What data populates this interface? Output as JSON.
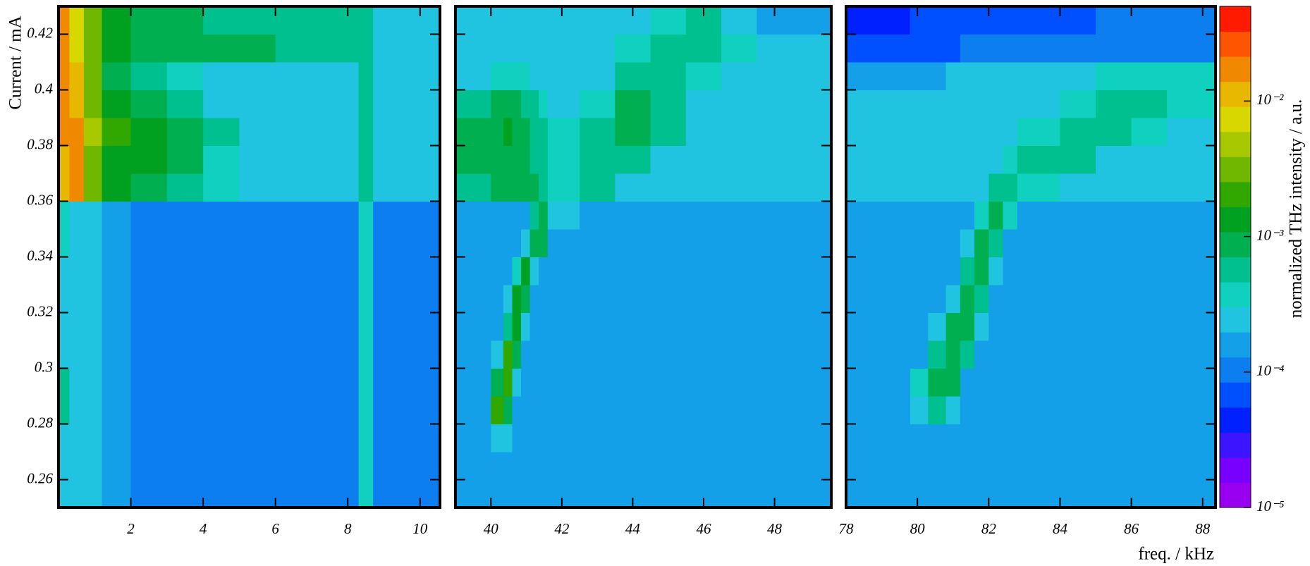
{
  "chart_data": {
    "type": "heatmap",
    "ylabel": "Current / mA",
    "xlabel": "freq. / kHz",
    "ylim": [
      0.25,
      0.43
    ],
    "yticks": [
      0.26,
      0.28,
      0.3,
      0.32,
      0.34,
      0.36,
      0.38,
      0.4,
      0.42
    ],
    "ybins": [
      0.25,
      0.27,
      0.28,
      0.29,
      0.3,
      0.31,
      0.32,
      0.33,
      0.34,
      0.35,
      0.36,
      0.37,
      0.38,
      0.39,
      0.4,
      0.41,
      0.42,
      0.43
    ],
    "zscale": "log",
    "zlim": [
      1e-05,
      0.05
    ],
    "zticks": [
      {
        "value": 1e-05,
        "label": "10⁻⁵"
      },
      {
        "value": 0.0001,
        "label": "10⁻⁴"
      },
      {
        "value": 0.001,
        "label": "10⁻³"
      },
      {
        "value": 0.01,
        "label": "10⁻²"
      }
    ],
    "zlabel": "normalized THz intensity / a.u.",
    "colors": [
      "#9a00f0",
      "#7800ff",
      "#3c14ff",
      "#0020ff",
      "#0050ff",
      "#0c7ef0",
      "#14a0e8",
      "#20c4e0",
      "#10d0c0",
      "#00c090",
      "#00b050",
      "#00a020",
      "#30a800",
      "#70b800",
      "#a8c800",
      "#d8d800",
      "#e8b800",
      "#f08800",
      "#ff5500",
      "#ff1a00"
    ],
    "panels": [
      {
        "xlim": [
          0,
          10.55
        ],
        "xticks": [
          2,
          4,
          6,
          8,
          10
        ],
        "xbins": [
          0,
          0.3,
          0.7,
          1.2,
          2,
          3,
          4,
          5,
          6,
          7,
          8.3,
          8.7,
          10.55
        ],
        "z": [
          [
            0.0002,
            0.00025,
            0.0002,
            0.00015,
            0.00012,
            0.00012,
            0.00012,
            0.00012,
            0.00012,
            0.00012,
            0.0004,
            0.00012
          ],
          [
            0.0003,
            0.0003,
            0.0002,
            0.00015,
            0.00012,
            0.00012,
            0.00012,
            0.00012,
            0.00012,
            0.00012,
            0.0004,
            0.00012
          ],
          [
            0.0006,
            0.0003,
            0.0002,
            0.00015,
            0.00012,
            0.00012,
            0.00012,
            0.00012,
            0.00012,
            0.00012,
            0.0004,
            0.00012
          ],
          [
            0.0005,
            0.0003,
            0.0002,
            0.00015,
            0.00012,
            0.00012,
            0.00012,
            0.00012,
            0.00012,
            0.00012,
            0.0004,
            0.00012
          ],
          [
            0.0003,
            0.0003,
            0.00025,
            0.00015,
            0.00012,
            0.00012,
            0.00012,
            0.00012,
            0.00012,
            0.00012,
            0.0004,
            0.00012
          ],
          [
            0.0003,
            0.0003,
            0.00025,
            0.00015,
            0.00012,
            0.00012,
            0.00012,
            0.00012,
            0.00012,
            0.00012,
            0.0004,
            0.00012
          ],
          [
            0.0003,
            0.0003,
            0.00025,
            0.00015,
            0.00012,
            0.00012,
            0.00012,
            0.00012,
            0.00012,
            0.00012,
            0.0004,
            0.00012
          ],
          [
            0.0003,
            0.0003,
            0.00025,
            0.00015,
            0.00012,
            0.00012,
            0.00012,
            0.00012,
            0.00012,
            0.00012,
            0.0004,
            0.00012
          ],
          [
            0.0004,
            0.0003,
            0.00025,
            0.00015,
            0.00012,
            0.00012,
            0.00012,
            0.00012,
            0.00012,
            0.00012,
            0.0004,
            0.00012
          ],
          [
            0.0004,
            0.0003,
            0.00025,
            0.00015,
            0.00012,
            0.00012,
            0.00012,
            0.00012,
            0.00012,
            0.00012,
            0.0004,
            0.00012
          ],
          [
            0.01,
            0.015,
            0.003,
            0.0012,
            0.001,
            0.0006,
            0.0004,
            0.0003,
            0.0003,
            0.0003,
            0.0006,
            0.00025
          ],
          [
            0.012,
            0.015,
            0.003,
            0.0015,
            0.0012,
            0.0008,
            0.0004,
            0.0003,
            0.0003,
            0.0003,
            0.0006,
            0.00025
          ],
          [
            0.015,
            0.015,
            0.004,
            0.002,
            0.0015,
            0.001,
            0.0005,
            0.0003,
            0.0003,
            0.0003,
            0.0006,
            0.00025
          ],
          [
            0.02,
            0.012,
            0.003,
            0.0012,
            0.0008,
            0.0005,
            0.0003,
            0.00025,
            0.00025,
            0.00025,
            0.0005,
            0.0002
          ],
          [
            0.02,
            0.01,
            0.003,
            0.001,
            0.0006,
            0.0004,
            0.0003,
            0.00025,
            0.00025,
            0.00025,
            0.0005,
            0.0002
          ],
          [
            0.015,
            0.008,
            0.003,
            0.0015,
            0.001,
            0.0008,
            0.0008,
            0.0008,
            0.0006,
            0.0006,
            0.0006,
            0.0003
          ],
          [
            0.015,
            0.008,
            0.003,
            0.0015,
            0.001,
            0.0008,
            0.0006,
            0.0006,
            0.0005,
            0.0005,
            0.0005,
            0.0002
          ]
        ]
      },
      {
        "xlim": [
          39,
          49.6
        ],
        "xticks": [
          40,
          42,
          44,
          46,
          48
        ],
        "xbins": [
          39,
          40,
          40.35,
          40.6,
          40.85,
          41.1,
          41.35,
          41.6,
          42.5,
          43.5,
          44.5,
          45.5,
          46.5,
          47.5,
          49.6
        ],
        "z": [
          [
            0.00013,
            0.00013,
            0.00013,
            0.00013,
            0.00013,
            0.00013,
            0.00013,
            0.00013,
            0.00013,
            0.00013,
            0.00013,
            0.00013,
            0.00013,
            0.00013
          ],
          [
            0.00013,
            0.0003,
            0.0002,
            0.00013,
            0.00013,
            0.00013,
            0.00013,
            0.00013,
            0.00013,
            0.00013,
            0.00013,
            0.00013,
            0.00013,
            0.00013
          ],
          [
            0.00013,
            0.002,
            0.001,
            0.00013,
            0.00013,
            0.00013,
            0.00013,
            0.00013,
            0.00013,
            0.00013,
            0.00013,
            0.00013,
            0.00013,
            0.00013
          ],
          [
            0.00013,
            0.0008,
            0.0025,
            0.0003,
            0.00013,
            0.00013,
            0.00013,
            0.00013,
            0.00013,
            0.00013,
            0.00013,
            0.00013,
            0.00013,
            0.00013
          ],
          [
            0.00013,
            0.0002,
            0.002,
            0.001,
            0.00013,
            0.00013,
            0.00013,
            0.00013,
            0.00013,
            0.00013,
            0.00013,
            0.00013,
            0.00013,
            0.00013
          ],
          [
            0.00013,
            0.00013,
            0.0005,
            0.0015,
            0.0003,
            0.00013,
            0.00013,
            0.00013,
            0.00013,
            0.00013,
            0.00013,
            0.00013,
            0.00013,
            0.00013
          ],
          [
            0.00013,
            0.00013,
            0.0002,
            0.0012,
            0.0008,
            0.00013,
            0.00013,
            0.00013,
            0.00013,
            0.00013,
            0.00013,
            0.00013,
            0.00013,
            0.00013
          ],
          [
            0.00013,
            0.00013,
            0.00013,
            0.0004,
            0.0012,
            0.0003,
            0.00013,
            0.00013,
            0.00013,
            0.00013,
            0.00013,
            0.00013,
            0.00013,
            0.00013
          ],
          [
            0.00013,
            0.00013,
            0.00013,
            0.00013,
            0.0002,
            0.001,
            0.0008,
            0.00013,
            0.00013,
            0.00013,
            0.00013,
            0.00013,
            0.00013,
            0.00013
          ],
          [
            0.00013,
            0.00013,
            0.00013,
            0.00013,
            0.00013,
            0.0005,
            0.001,
            0.0003,
            0.00013,
            0.00013,
            0.00013,
            0.00013,
            0.00013,
            0.00013
          ],
          [
            0.0006,
            0.0008,
            0.0008,
            0.0008,
            0.0008,
            0.0008,
            0.0006,
            0.0004,
            0.0005,
            0.0003,
            0.0003,
            0.00025,
            0.00025,
            0.0002
          ],
          [
            0.0008,
            0.001,
            0.001,
            0.0009,
            0.0008,
            0.0006,
            0.0005,
            0.0004,
            0.0006,
            0.0005,
            0.0003,
            0.00025,
            0.00025,
            0.0002
          ],
          [
            0.0008,
            0.001,
            0.0012,
            0.001,
            0.0008,
            0.0006,
            0.0005,
            0.0004,
            0.0005,
            0.0008,
            0.0005,
            0.0003,
            0.00025,
            0.0002
          ],
          [
            0.0005,
            0.0008,
            0.0009,
            0.0008,
            0.0006,
            0.0005,
            0.0004,
            0.0003,
            0.0004,
            0.0008,
            0.0006,
            0.0003,
            0.00025,
            0.0002
          ],
          [
            0.0003,
            0.0004,
            0.0004,
            0.0004,
            0.0004,
            0.0003,
            0.0003,
            0.0003,
            0.0003,
            0.0006,
            0.0006,
            0.0004,
            0.0003,
            0.0002
          ],
          [
            0.00025,
            0.0003,
            0.0003,
            0.0003,
            0.0003,
            0.0003,
            0.0003,
            0.0003,
            0.0003,
            0.0004,
            0.0006,
            0.0006,
            0.0004,
            0.0002
          ],
          [
            0.0002,
            0.0002,
            0.0002,
            0.0002,
            0.0002,
            0.0002,
            0.0002,
            0.0002,
            0.0002,
            0.0003,
            0.0004,
            0.0005,
            0.0003,
            0.00015
          ]
        ]
      },
      {
        "xlim": [
          78,
          88.36
        ],
        "xticks": [
          78,
          80,
          82,
          84,
          86,
          88
        ],
        "xbins": [
          78,
          79.8,
          80.3,
          80.8,
          81.2,
          81.6,
          82,
          82.4,
          82.8,
          84,
          85,
          86,
          87,
          88.36
        ],
        "z": [
          [
            0.00013,
            0.00013,
            0.00013,
            0.00013,
            0.00013,
            0.00013,
            0.00013,
            0.00013,
            0.00013,
            0.00013,
            0.00013,
            0.00013,
            0.00013
          ],
          [
            0.00013,
            0.00013,
            0.00013,
            0.00013,
            0.00013,
            0.00013,
            0.00013,
            0.00013,
            0.00013,
            0.00013,
            0.00013,
            0.00013,
            0.00013
          ],
          [
            0.00013,
            0.0003,
            0.0006,
            0.0003,
            0.00013,
            0.00013,
            0.00013,
            0.00013,
            0.00013,
            0.00013,
            0.00013,
            0.00013,
            0.00013
          ],
          [
            0.00013,
            0.0004,
            0.0008,
            0.0008,
            0.00013,
            0.00013,
            0.00013,
            0.00013,
            0.00013,
            0.00013,
            0.00013,
            0.00013,
            0.00013
          ],
          [
            0.00013,
            0.00013,
            0.0005,
            0.001,
            0.0006,
            0.00013,
            0.00013,
            0.00013,
            0.00013,
            0.00013,
            0.00013,
            0.00013,
            0.00013
          ],
          [
            0.00013,
            0.00013,
            0.0002,
            0.0008,
            0.001,
            0.0002,
            0.00013,
            0.00013,
            0.00013,
            0.00013,
            0.00013,
            0.00013,
            0.00013
          ],
          [
            0.00013,
            0.00013,
            0.00013,
            0.0003,
            0.001,
            0.0006,
            0.00013,
            0.00013,
            0.00013,
            0.00013,
            0.00013,
            0.00013,
            0.00013
          ],
          [
            0.00013,
            0.00013,
            0.00013,
            0.00013,
            0.0006,
            0.0008,
            0.0003,
            0.00013,
            0.00013,
            0.00013,
            0.00013,
            0.00013,
            0.00013
          ],
          [
            0.00013,
            0.00013,
            0.00013,
            0.00013,
            0.0002,
            0.0008,
            0.0006,
            0.00013,
            0.00013,
            0.00013,
            0.00013,
            0.00013,
            0.00013
          ],
          [
            0.00013,
            0.00013,
            0.00013,
            0.00013,
            0.00013,
            0.0004,
            0.0008,
            0.0004,
            0.00013,
            0.00013,
            0.00013,
            0.00013,
            0.00013
          ],
          [
            0.0003,
            0.0003,
            0.0003,
            0.0003,
            0.0003,
            0.0003,
            0.0005,
            0.0006,
            0.0004,
            0.00025,
            0.00025,
            0.0002,
            0.0002
          ],
          [
            0.0003,
            0.0003,
            0.0003,
            0.0003,
            0.0003,
            0.0003,
            0.0003,
            0.0004,
            0.0006,
            0.0005,
            0.0003,
            0.00025,
            0.0002
          ],
          [
            0.0003,
            0.0003,
            0.0003,
            0.0003,
            0.0003,
            0.0003,
            0.0003,
            0.0003,
            0.0004,
            0.0006,
            0.0005,
            0.0004,
            0.0003
          ],
          [
            0.00025,
            0.00025,
            0.00025,
            0.00025,
            0.00025,
            0.00025,
            0.00025,
            0.0003,
            0.0003,
            0.0004,
            0.0005,
            0.0005,
            0.0004
          ],
          [
            0.00015,
            0.00015,
            0.00015,
            0.0002,
            0.0002,
            0.0002,
            0.0002,
            0.0002,
            0.00025,
            0.0003,
            0.0004,
            0.0004,
            0.0004
          ],
          [
            7e-05,
            8e-05,
            8e-05,
            8e-05,
            0.0001,
            0.0001,
            0.0001,
            0.0001,
            0.0001,
            0.0001,
            0.00012,
            0.00012,
            0.00012
          ],
          [
            5e-05,
            6e-05,
            6e-05,
            6e-05,
            8e-05,
            8e-05,
            8e-05,
            8e-05,
            8e-05,
            8e-05,
            0.0001,
            0.0001,
            0.0001
          ]
        ]
      }
    ]
  }
}
